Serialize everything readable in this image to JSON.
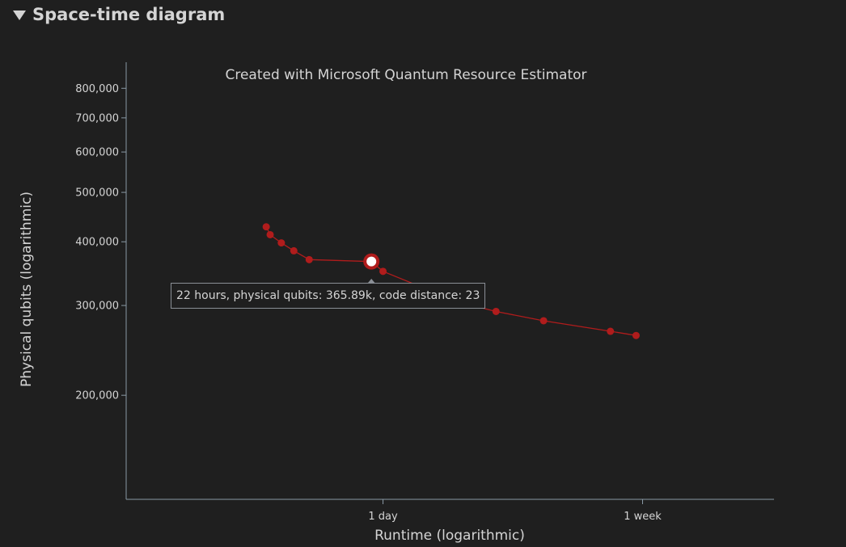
{
  "section": {
    "title": "Space-time diagram"
  },
  "chart_data": {
    "type": "line",
    "title": "Created with Microsoft Quantum Resource Estimator",
    "xlabel": "Runtime (logarithmic)",
    "ylabel": "Physical qubits (logarithmic)",
    "x_scale": "log",
    "y_scale": "log",
    "x_unit": "hours",
    "xlim": [
      3.5,
      450
    ],
    "ylim": [
      125000,
      900000
    ],
    "x_ticks": [
      {
        "value": 24,
        "label": "1 day"
      },
      {
        "value": 168,
        "label": "1 week"
      }
    ],
    "y_ticks": [
      {
        "value": 200000,
        "label": "200,000"
      },
      {
        "value": 300000,
        "label": "300,000"
      },
      {
        "value": 400000,
        "label": "400,000"
      },
      {
        "value": 500000,
        "label": "500,000"
      },
      {
        "value": 600000,
        "label": "600,000"
      },
      {
        "value": 700000,
        "label": "700,000"
      },
      {
        "value": 800000,
        "label": "800,000"
      }
    ],
    "grid": false,
    "series": [
      {
        "color": "#b01c1c",
        "x": [
          10.0,
          10.3,
          11.2,
          12.3,
          13.8,
          22,
          24,
          42,
          56,
          80,
          132,
          160
        ],
        "y": [
          428000,
          413000,
          398000,
          384000,
          369000,
          365890,
          350000,
          305000,
          292000,
          280000,
          267000,
          262000
        ]
      }
    ],
    "highlight": {
      "index": 5,
      "tooltip": "22 hours, physical qubits: 365.89k, code distance: 23"
    }
  }
}
